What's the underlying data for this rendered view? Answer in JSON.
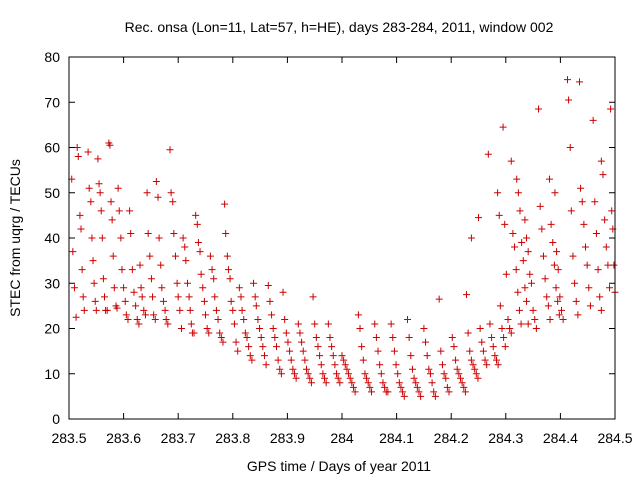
{
  "chart_data": {
    "type": "scatter",
    "title": "Rec. onsa (Lon=11, Lat=57, h=HE), days 283-284, 2011, window 002",
    "xlabel": "GPS time / Days of year 2011",
    "ylabel": "STEC from uqrg / TECUs",
    "xlim": [
      283.5,
      284.5
    ],
    "ylim": [
      0,
      80
    ],
    "xticks": [
      "283.5",
      "283.6",
      "283.7",
      "283.8",
      "283.9",
      "284",
      "284.1",
      "284.2",
      "284.3",
      "284.4",
      "284.5"
    ],
    "yticks": [
      "0",
      "10",
      "20",
      "30",
      "40",
      "50",
      "60",
      "70",
      "80"
    ],
    "grid": false,
    "marker": "plus",
    "color": "#cc0000",
    "points": [
      [
        283.505,
        53
      ],
      [
        283.507,
        37
      ],
      [
        283.51,
        29
      ],
      [
        283.513,
        22.5
      ],
      [
        283.515,
        60
      ],
      [
        283.517,
        58
      ],
      [
        283.52,
        45
      ],
      [
        283.522,
        42
      ],
      [
        283.524,
        33
      ],
      [
        283.526,
        27
      ],
      [
        283.528,
        24
      ],
      [
        283.535,
        59
      ],
      [
        283.537,
        51
      ],
      [
        283.54,
        48
      ],
      [
        283.542,
        40
      ],
      [
        283.544,
        35
      ],
      [
        283.546,
        30
      ],
      [
        283.548,
        26
      ],
      [
        283.55,
        24
      ],
      [
        283.553,
        57.5
      ],
      [
        283.555,
        52
      ],
      [
        283.557,
        50
      ],
      [
        283.559,
        46
      ],
      [
        283.561,
        40
      ],
      [
        283.563,
        31
      ],
      [
        283.565,
        27
      ],
      [
        283.567,
        24
      ],
      [
        283.57,
        24
      ],
      [
        283.573,
        61
      ],
      [
        283.575,
        60.5
      ],
      [
        283.577,
        48
      ],
      [
        283.579,
        44
      ],
      [
        283.581,
        36
      ],
      [
        283.583,
        29
      ],
      [
        283.586,
        25
      ],
      [
        283.588,
        24.5
      ],
      [
        283.59,
        51
      ],
      [
        283.592,
        46
      ],
      [
        283.595,
        40
      ],
      [
        283.597,
        33
      ],
      [
        283.6,
        29
      ],
      [
        283.603,
        26
      ],
      [
        283.605,
        23
      ],
      [
        283.608,
        22
      ],
      [
        283.611,
        46
      ],
      [
        283.613,
        41
      ],
      [
        283.616,
        33
      ],
      [
        283.619,
        28
      ],
      [
        283.622,
        25
      ],
      [
        283.625,
        22
      ],
      [
        283.628,
        21
      ],
      [
        283.63,
        34
      ],
      [
        283.632,
        29
      ],
      [
        283.634,
        27
      ],
      [
        283.637,
        24
      ],
      [
        283.64,
        23
      ],
      [
        283.643,
        50
      ],
      [
        283.645,
        41
      ],
      [
        283.648,
        36
      ],
      [
        283.651,
        31
      ],
      [
        283.653,
        27
      ],
      [
        283.655,
        23
      ],
      [
        283.658,
        22
      ],
      [
        283.66,
        52.5
      ],
      [
        283.663,
        49
      ],
      [
        283.665,
        40
      ],
      [
        283.668,
        34
      ],
      [
        283.67,
        29
      ],
      [
        283.673,
        26
      ],
      [
        283.676,
        24
      ],
      [
        283.678,
        22
      ],
      [
        283.681,
        21
      ],
      [
        283.685,
        59.5
      ],
      [
        283.687,
        50
      ],
      [
        283.69,
        48
      ],
      [
        283.692,
        41
      ],
      [
        283.695,
        36
      ],
      [
        283.698,
        30
      ],
      [
        283.7,
        27
      ],
      [
        283.703,
        24
      ],
      [
        283.706,
        20
      ],
      [
        283.709,
        40
      ],
      [
        283.712,
        38
      ],
      [
        283.714,
        35
      ],
      [
        283.717,
        30
      ],
      [
        283.72,
        27
      ],
      [
        283.722,
        24
      ],
      [
        283.724,
        21
      ],
      [
        283.726,
        19
      ],
      [
        283.729,
        19
      ],
      [
        283.732,
        45
      ],
      [
        283.735,
        43
      ],
      [
        283.737,
        39
      ],
      [
        283.74,
        37
      ],
      [
        283.742,
        32
      ],
      [
        283.745,
        29
      ],
      [
        283.748,
        26
      ],
      [
        283.75,
        23
      ],
      [
        283.753,
        20
      ],
      [
        283.756,
        19
      ],
      [
        283.759,
        36
      ],
      [
        283.762,
        33
      ],
      [
        283.765,
        31
      ],
      [
        283.767,
        27
      ],
      [
        283.77,
        24
      ],
      [
        283.773,
        22
      ],
      [
        283.776,
        19
      ],
      [
        283.779,
        18
      ],
      [
        283.782,
        17
      ],
      [
        283.785,
        47.5
      ],
      [
        283.787,
        41
      ],
      [
        283.79,
        36
      ],
      [
        283.792,
        33
      ],
      [
        283.795,
        31
      ],
      [
        283.797,
        26
      ],
      [
        283.8,
        24
      ],
      [
        283.803,
        21
      ],
      [
        283.806,
        17
      ],
      [
        283.809,
        15
      ],
      [
        283.812,
        29
      ],
      [
        283.815,
        27
      ],
      [
        283.817,
        24
      ],
      [
        283.82,
        22
      ],
      [
        283.823,
        19
      ],
      [
        283.826,
        18
      ],
      [
        283.829,
        16
      ],
      [
        283.832,
        14
      ],
      [
        283.835,
        13
      ],
      [
        283.838,
        30
      ],
      [
        283.841,
        27
      ],
      [
        283.843,
        25
      ],
      [
        283.846,
        22
      ],
      [
        283.849,
        20
      ],
      [
        283.852,
        18
      ],
      [
        283.855,
        16
      ],
      [
        283.858,
        14
      ],
      [
        283.861,
        12
      ],
      [
        283.865,
        29.5
      ],
      [
        283.868,
        26
      ],
      [
        283.871,
        23
      ],
      [
        283.874,
        20
      ],
      [
        283.877,
        18
      ],
      [
        283.88,
        16
      ],
      [
        283.883,
        13
      ],
      [
        283.886,
        11
      ],
      [
        283.889,
        10
      ],
      [
        283.892,
        28
      ],
      [
        283.895,
        22
      ],
      [
        283.898,
        19
      ],
      [
        283.901,
        17
      ],
      [
        283.904,
        15
      ],
      [
        283.907,
        13
      ],
      [
        283.91,
        11
      ],
      [
        283.913,
        10
      ],
      [
        283.916,
        9
      ],
      [
        283.92,
        21
      ],
      [
        283.923,
        19
      ],
      [
        283.926,
        17
      ],
      [
        283.929,
        15
      ],
      [
        283.932,
        13
      ],
      [
        283.935,
        11
      ],
      [
        283.938,
        10
      ],
      [
        283.941,
        9
      ],
      [
        283.944,
        8
      ],
      [
        283.947,
        27
      ],
      [
        283.95,
        21
      ],
      [
        283.953,
        18
      ],
      [
        283.956,
        16
      ],
      [
        283.959,
        14
      ],
      [
        283.962,
        12
      ],
      [
        283.965,
        10
      ],
      [
        283.968,
        9
      ],
      [
        283.971,
        8
      ],
      [
        283.975,
        21
      ],
      [
        283.978,
        18
      ],
      [
        283.981,
        16
      ],
      [
        283.984,
        14
      ],
      [
        283.987,
        12
      ],
      [
        283.99,
        10
      ],
      [
        283.993,
        9
      ],
      [
        283.996,
        8
      ],
      [
        284.0,
        14
      ],
      [
        284.003,
        13
      ],
      [
        284.006,
        12
      ],
      [
        284.009,
        11
      ],
      [
        284.012,
        10
      ],
      [
        284.015,
        9
      ],
      [
        284.018,
        8
      ],
      [
        284.021,
        7
      ],
      [
        284.024,
        6
      ],
      [
        284.03,
        23
      ],
      [
        284.033,
        20
      ],
      [
        284.036,
        16
      ],
      [
        284.039,
        13
      ],
      [
        284.042,
        10
      ],
      [
        284.045,
        9
      ],
      [
        284.048,
        8
      ],
      [
        284.051,
        7
      ],
      [
        284.054,
        6
      ],
      [
        284.06,
        21
      ],
      [
        284.063,
        18
      ],
      [
        284.066,
        15
      ],
      [
        284.069,
        12
      ],
      [
        284.072,
        10
      ],
      [
        284.075,
        8
      ],
      [
        284.078,
        7
      ],
      [
        284.081,
        6
      ],
      [
        284.084,
        6
      ],
      [
        284.09,
        21
      ],
      [
        284.093,
        18
      ],
      [
        284.096,
        15
      ],
      [
        284.099,
        12
      ],
      [
        284.102,
        10
      ],
      [
        284.105,
        8
      ],
      [
        284.108,
        7
      ],
      [
        284.111,
        6
      ],
      [
        284.114,
        5
      ],
      [
        284.12,
        22
      ],
      [
        284.123,
        18
      ],
      [
        284.126,
        14
      ],
      [
        284.129,
        11
      ],
      [
        284.132,
        9
      ],
      [
        284.135,
        8
      ],
      [
        284.138,
        7
      ],
      [
        284.141,
        6
      ],
      [
        284.144,
        5
      ],
      [
        284.15,
        20
      ],
      [
        284.153,
        17
      ],
      [
        284.156,
        14
      ],
      [
        284.159,
        11
      ],
      [
        284.162,
        10
      ],
      [
        284.165,
        8
      ],
      [
        284.168,
        6
      ],
      [
        284.171,
        5
      ],
      [
        284.178,
        26.5
      ],
      [
        284.181,
        15
      ],
      [
        284.184,
        12
      ],
      [
        284.187,
        10
      ],
      [
        284.19,
        9
      ],
      [
        284.193,
        7
      ],
      [
        284.196,
        6
      ],
      [
        284.202,
        18
      ],
      [
        284.205,
        16
      ],
      [
        284.208,
        13
      ],
      [
        284.211,
        11
      ],
      [
        284.214,
        10
      ],
      [
        284.217,
        9
      ],
      [
        284.22,
        8
      ],
      [
        284.223,
        7
      ],
      [
        284.226,
        6
      ],
      [
        284.228,
        27.5
      ],
      [
        284.231,
        19
      ],
      [
        284.234,
        15
      ],
      [
        284.237,
        13
      ],
      [
        284.24,
        12
      ],
      [
        284.243,
        11
      ],
      [
        284.246,
        10
      ],
      [
        284.249,
        9
      ],
      [
        284.237,
        40
      ],
      [
        284.25,
        44.5
      ],
      [
        284.253,
        20
      ],
      [
        284.256,
        17
      ],
      [
        284.259,
        15
      ],
      [
        284.262,
        13
      ],
      [
        284.265,
        12
      ],
      [
        284.268,
        58.5
      ],
      [
        284.271,
        21
      ],
      [
        284.274,
        18
      ],
      [
        284.277,
        16
      ],
      [
        284.28,
        14
      ],
      [
        284.283,
        13
      ],
      [
        284.286,
        12
      ],
      [
        284.285,
        50
      ],
      [
        284.288,
        45
      ],
      [
        284.29,
        25
      ],
      [
        284.293,
        20
      ],
      [
        284.296,
        18
      ],
      [
        284.299,
        16
      ],
      [
        284.295,
        64.5
      ],
      [
        284.298,
        43
      ],
      [
        284.301,
        32
      ],
      [
        284.304,
        22
      ],
      [
        284.307,
        20
      ],
      [
        284.31,
        19
      ],
      [
        284.31,
        57
      ],
      [
        284.313,
        41
      ],
      [
        284.316,
        38
      ],
      [
        284.319,
        33
      ],
      [
        284.322,
        28
      ],
      [
        284.325,
        24
      ],
      [
        284.328,
        21
      ],
      [
        284.32,
        53
      ],
      [
        284.323,
        50
      ],
      [
        284.326,
        46
      ],
      [
        284.329,
        39
      ],
      [
        284.332,
        35
      ],
      [
        284.335,
        29
      ],
      [
        284.338,
        26
      ],
      [
        284.341,
        21
      ],
      [
        284.335,
        44
      ],
      [
        284.338,
        40
      ],
      [
        284.341,
        37
      ],
      [
        284.344,
        32
      ],
      [
        284.347,
        30
      ],
      [
        284.35,
        24
      ],
      [
        284.353,
        22
      ],
      [
        284.356,
        20
      ],
      [
        284.36,
        68.5
      ],
      [
        284.363,
        47
      ],
      [
        284.366,
        42
      ],
      [
        284.369,
        36
      ],
      [
        284.372,
        31
      ],
      [
        284.375,
        27
      ],
      [
        284.378,
        25
      ],
      [
        284.381,
        22
      ],
      [
        284.38,
        53
      ],
      [
        284.383,
        43
      ],
      [
        284.386,
        39
      ],
      [
        284.389,
        34
      ],
      [
        284.392,
        29
      ],
      [
        284.395,
        26
      ],
      [
        284.398,
        23
      ],
      [
        284.39,
        50
      ],
      [
        284.393,
        37
      ],
      [
        284.396,
        33
      ],
      [
        284.399,
        27
      ],
      [
        284.402,
        24
      ],
      [
        284.405,
        22
      ],
      [
        284.413,
        75
      ],
      [
        284.415,
        70.5
      ],
      [
        284.418,
        60
      ],
      [
        284.42,
        46
      ],
      [
        284.423,
        36
      ],
      [
        284.426,
        30
      ],
      [
        284.429,
        26
      ],
      [
        284.432,
        23
      ],
      [
        284.435,
        74.5
      ],
      [
        284.437,
        51
      ],
      [
        284.44,
        48
      ],
      [
        284.443,
        43
      ],
      [
        284.446,
        38
      ],
      [
        284.449,
        34
      ],
      [
        284.452,
        29
      ],
      [
        284.455,
        25
      ],
      [
        284.46,
        66
      ],
      [
        284.463,
        48
      ],
      [
        284.466,
        41
      ],
      [
        284.469,
        33
      ],
      [
        284.472,
        27
      ],
      [
        284.475,
        24
      ],
      [
        284.475,
        57
      ],
      [
        284.478,
        54
      ],
      [
        284.481,
        44
      ],
      [
        284.484,
        38
      ],
      [
        284.487,
        34
      ],
      [
        284.49,
        29
      ],
      [
        284.492,
        68.5
      ],
      [
        284.494,
        46
      ],
      [
        284.496,
        42
      ],
      [
        284.498,
        34
      ],
      [
        284.5,
        28
      ]
    ]
  }
}
